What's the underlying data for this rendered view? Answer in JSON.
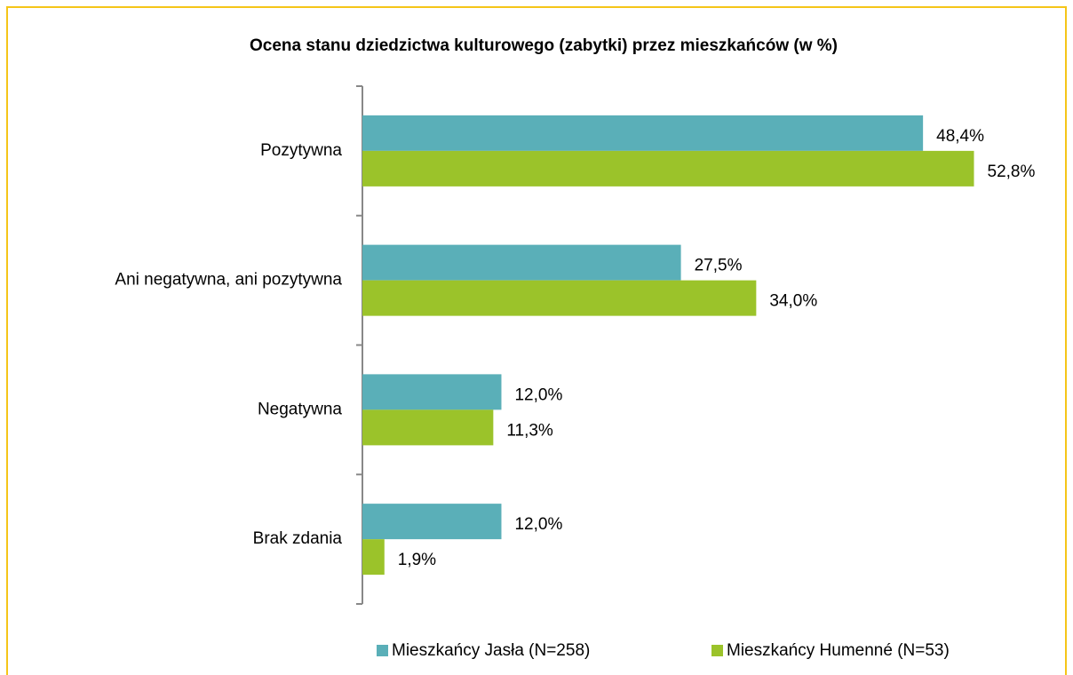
{
  "chart_data": {
    "type": "barh",
    "title": "Ocena stanu dziedzictwa kulturowego (zabytki) przez mieszkańców (w %)",
    "categories": [
      "Pozytywna",
      "Ani negatywna, ani pozytywna",
      "Negatywna",
      "Brak zdania"
    ],
    "series": [
      {
        "name": "Mieszkańcy Jasła (N=258)",
        "color": "#5aafb8",
        "values": [
          48.4,
          27.5,
          12.0,
          12.0
        ],
        "value_labels": [
          "48,4%",
          "27,5%",
          "12,0%",
          "12,0%"
        ]
      },
      {
        "name": "Mieszkańcy Humenné (N=53)",
        "color": "#9bc32a",
        "values": [
          52.8,
          34.0,
          11.3,
          1.9
        ],
        "value_labels": [
          "52,8%",
          "34,0%",
          "11,3%",
          "1,9%"
        ]
      }
    ],
    "legend": "bottom"
  }
}
